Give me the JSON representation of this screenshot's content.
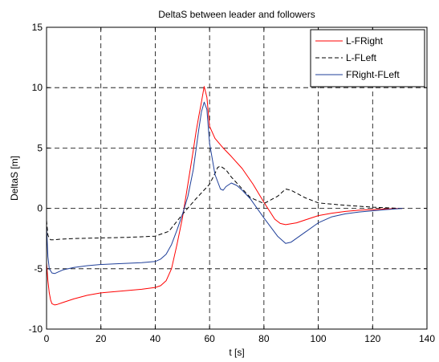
{
  "chart_data": {
    "type": "line",
    "title": "DeltaS between leader and followers",
    "xlabel": "t [s]",
    "ylabel": "DeltaS [m]",
    "xlim": [
      0,
      140
    ],
    "ylim": [
      -10,
      15
    ],
    "xticks": [
      0,
      20,
      40,
      60,
      80,
      100,
      120,
      140
    ],
    "yticks": [
      -10,
      -5,
      0,
      5,
      10,
      15
    ],
    "grid": true,
    "legend_position": "top-right",
    "series": [
      {
        "name": "L-FRight",
        "color": "#ff0000",
        "dash": "solid",
        "x": [
          0,
          0.5,
          1,
          1.5,
          2,
          3,
          4,
          6,
          10,
          15,
          20,
          25,
          30,
          35,
          40,
          42,
          44,
          46,
          48,
          50,
          52,
          54,
          55,
          56,
          57,
          58,
          59,
          60,
          62,
          65,
          68,
          72,
          76,
          80,
          84,
          86,
          88,
          92,
          96,
          100,
          105,
          110,
          115,
          120,
          125,
          128,
          130,
          131
        ],
        "y": [
          -4.5,
          -6.0,
          -7.0,
          -7.6,
          -7.9,
          -8.0,
          -7.95,
          -7.8,
          -7.5,
          -7.2,
          -7.0,
          -6.9,
          -6.8,
          -6.7,
          -6.55,
          -6.4,
          -6.0,
          -5.0,
          -3.0,
          -0.8,
          2.0,
          4.8,
          6.3,
          7.6,
          8.8,
          10.1,
          9.2,
          6.8,
          5.8,
          5.0,
          4.3,
          3.3,
          2.0,
          0.5,
          -0.9,
          -1.25,
          -1.35,
          -1.2,
          -0.9,
          -0.6,
          -0.4,
          -0.25,
          -0.15,
          -0.1,
          -0.05,
          -0.02,
          0,
          0
        ]
      },
      {
        "name": "L-FLeft",
        "color": "#000000",
        "dash": "dashed",
        "x": [
          0,
          0.5,
          1,
          1.5,
          2,
          3,
          5,
          10,
          20,
          30,
          40,
          45,
          50,
          55,
          60,
          62,
          63,
          64,
          66,
          68,
          70,
          75,
          80,
          85,
          88,
          90,
          95,
          100,
          110,
          120,
          130,
          131
        ],
        "y": [
          -1.0,
          -2.2,
          -2.5,
          -2.6,
          -2.6,
          -2.6,
          -2.55,
          -2.5,
          -2.45,
          -2.4,
          -2.3,
          -1.9,
          -0.5,
          0.8,
          2.0,
          2.9,
          3.4,
          3.5,
          3.2,
          2.6,
          2.1,
          0.9,
          0.4,
          1.0,
          1.6,
          1.5,
          0.9,
          0.45,
          0.25,
          0.1,
          0.0,
          0.0
        ]
      },
      {
        "name": "FRight-FLeft",
        "color": "#1f3f99",
        "dash": "solid",
        "x": [
          0,
          0.5,
          1,
          2,
          3,
          4,
          6,
          10,
          15,
          20,
          25,
          30,
          35,
          40,
          42,
          44,
          46,
          48,
          50,
          52,
          54,
          56,
          57,
          58,
          59,
          60,
          62,
          64,
          65,
          66,
          68,
          70,
          72,
          75,
          80,
          85,
          88,
          90,
          95,
          100,
          105,
          110,
          115,
          120,
          125,
          130,
          131
        ],
        "y": [
          -1.5,
          -4.0,
          -5.0,
          -5.35,
          -5.4,
          -5.3,
          -5.1,
          -4.9,
          -4.75,
          -4.65,
          -4.6,
          -4.55,
          -4.5,
          -4.4,
          -4.2,
          -3.8,
          -3.0,
          -1.8,
          -0.5,
          1.0,
          3.2,
          6.5,
          8.0,
          8.8,
          8.2,
          5.4,
          2.8,
          1.6,
          1.5,
          1.8,
          2.1,
          1.9,
          1.5,
          0.8,
          -0.8,
          -2.3,
          -2.9,
          -2.8,
          -2.0,
          -1.2,
          -0.7,
          -0.45,
          -0.3,
          -0.2,
          -0.1,
          -0.02,
          0
        ]
      }
    ]
  }
}
